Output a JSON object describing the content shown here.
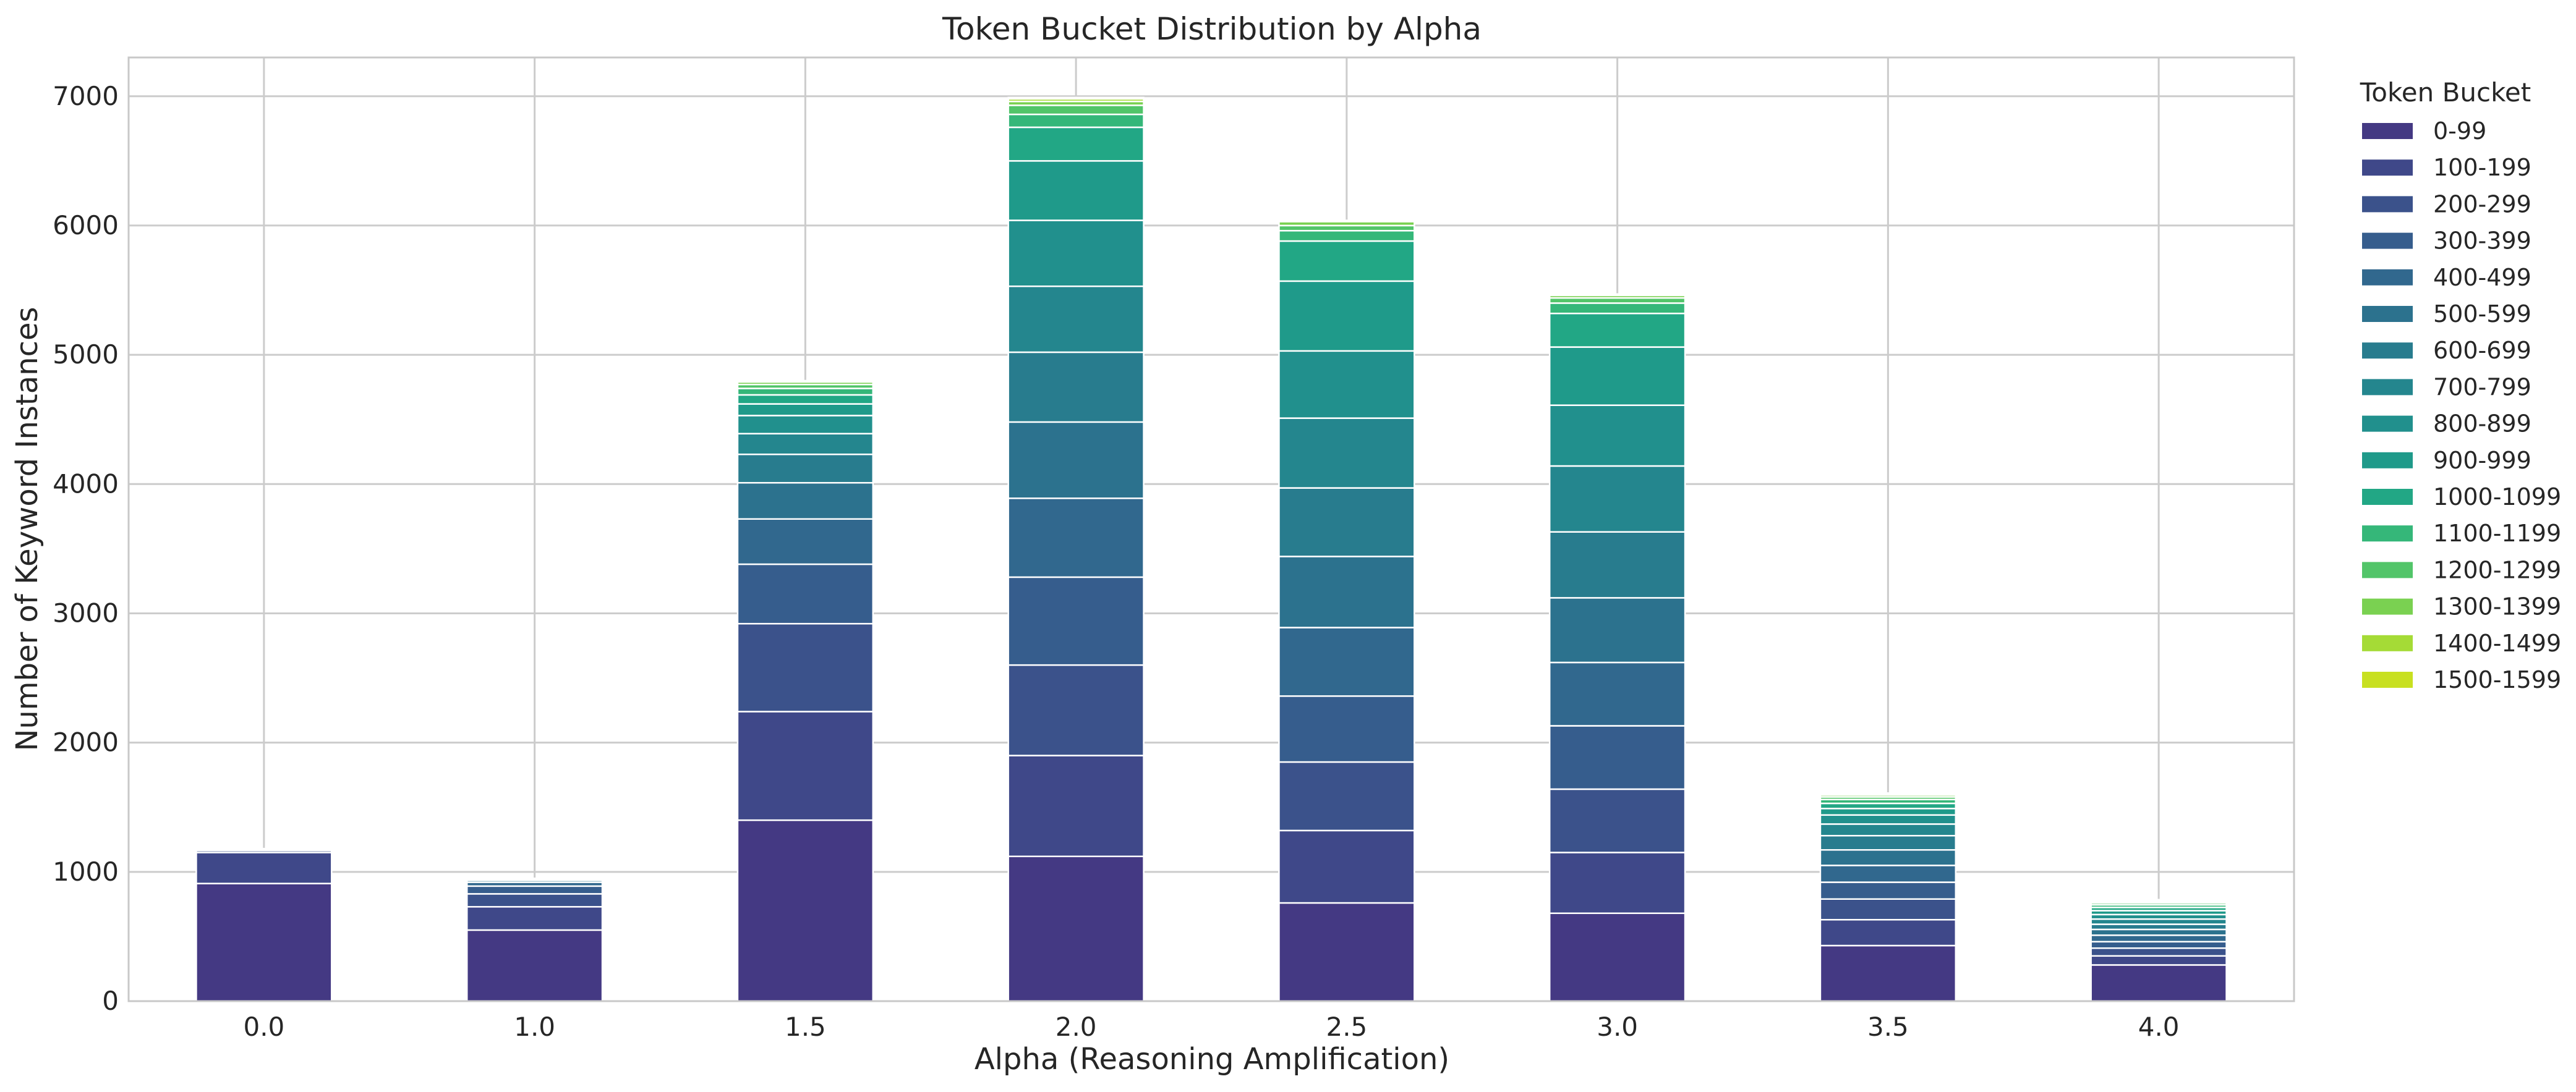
{
  "chart_data": {
    "type": "bar",
    "stacked": true,
    "title": "Token Bucket Distribution by Alpha",
    "xlabel": "Alpha (Reasoning Amplification)",
    "ylabel": "Number of Keyword Instances",
    "categories": [
      "0.0",
      "1.0",
      "1.5",
      "2.0",
      "2.5",
      "3.0",
      "3.5",
      "4.0"
    ],
    "ylim": [
      0,
      7300
    ],
    "yticks": [
      "0",
      "1000",
      "2000",
      "3000",
      "4000",
      "5000",
      "6000",
      "7000"
    ],
    "grid": true,
    "legend": {
      "title": "Token Bucket",
      "placement": "outside-right"
    },
    "series": [
      {
        "name": "0-99",
        "color": "#443983",
        "values": [
          910,
          550,
          1400,
          1120,
          760,
          680,
          430,
          280
        ]
      },
      {
        "name": "100-199",
        "color": "#3f4889",
        "values": [
          240,
          180,
          840,
          780,
          560,
          470,
          200,
          70
        ]
      },
      {
        "name": "200-299",
        "color": "#3b528b",
        "values": [
          15,
          100,
          680,
          700,
          530,
          490,
          160,
          60
        ]
      },
      {
        "name": "300-399",
        "color": "#365d8d",
        "values": [
          10,
          60,
          460,
          680,
          510,
          490,
          130,
          50
        ]
      },
      {
        "name": "400-499",
        "color": "#31688e",
        "values": [
          5,
          30,
          350,
          610,
          530,
          490,
          130,
          50
        ]
      },
      {
        "name": "500-599",
        "color": "#2c728e",
        "values": [
          0,
          15,
          280,
          590,
          550,
          500,
          120,
          45
        ]
      },
      {
        "name": "600-699",
        "color": "#287c8e",
        "values": [
          0,
          10,
          220,
          540,
          530,
          510,
          110,
          40
        ]
      },
      {
        "name": "700-799",
        "color": "#24868e",
        "values": [
          0,
          5,
          160,
          510,
          540,
          510,
          90,
          40
        ]
      },
      {
        "name": "800-899",
        "color": "#21908d",
        "values": [
          0,
          0,
          140,
          510,
          520,
          470,
          70,
          35
        ]
      },
      {
        "name": "900-999",
        "color": "#1f9a8a",
        "values": [
          0,
          0,
          90,
          460,
          540,
          450,
          50,
          30
        ]
      },
      {
        "name": "1000-1099",
        "color": "#22a785",
        "values": [
          0,
          0,
          70,
          260,
          310,
          260,
          40,
          25
        ]
      },
      {
        "name": "1100-1199",
        "color": "#35b779",
        "values": [
          0,
          0,
          50,
          100,
          80,
          80,
          30,
          20
        ]
      },
      {
        "name": "1200-1299",
        "color": "#52c569",
        "values": [
          0,
          0,
          30,
          70,
          40,
          40,
          20,
          15
        ]
      },
      {
        "name": "1300-1399",
        "color": "#7ad151",
        "values": [
          0,
          0,
          20,
          30,
          30,
          20,
          15,
          10
        ]
      },
      {
        "name": "1400-1499",
        "color": "#a5db36",
        "values": [
          0,
          0,
          10,
          20,
          10,
          10,
          10,
          10
        ]
      },
      {
        "name": "1500-1599",
        "color": "#c8e020",
        "values": [
          0,
          0,
          0,
          10,
          0,
          0,
          5,
          5
        ]
      }
    ]
  }
}
